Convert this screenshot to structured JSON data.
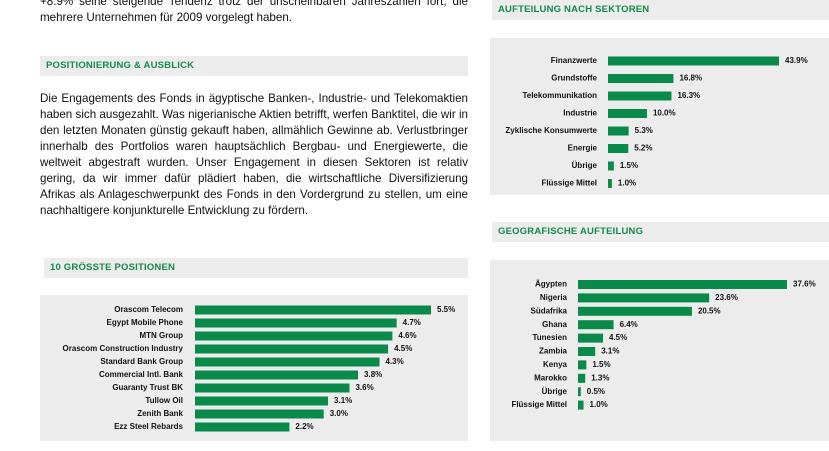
{
  "document": {
    "intro": "+8.9% seine steigende Tendenz trotz der unscheinbaren Jahreszahlen fort, die mehrere Unternehmen für 2009 vorgelegt haben.",
    "section_heading": "POSITIONIERUNG & AUSBLICK",
    "section_text": "Die Engagements des Fonds in ägyptische Banken-, Industrie- und Telekomaktien haben sich ausgezahlt. Was nigerianische Aktien betrifft, werfen Banktitel, die wir in den letzten Monaten günstig gekauft haben, allmählich Gewinne ab. Verlustbringer innerhalb des Portfolios waren hauptsächlich Bergbau- und Energiewerte, die weltweit abgestraft wurden. Unser Engagement in diesen Sektoren ist relativ gering, da wir immer dafür plädiert haben, die wirtschaftliche Diversifizierung Afrikas als Anlageschwerpunkt des Fonds in den Vordergrund zu stellen, um eine nachhaltigere konjunkturelle Entwicklung zu fördern."
  },
  "chart_data": [
    {
      "type": "bar",
      "orientation": "horizontal",
      "title": "10 GRÖSSTE POSITIONEN",
      "color": "#0a8a4a",
      "categories": [
        "Orascom Telecom",
        "Egypt Mobile Phone",
        "MTN Group",
        "Orascom Construction Industry",
        "Standard Bank Group",
        "Commercial Intl. Bank",
        "Guaranty Trust BK",
        "Tullow Oil",
        "Zenith Bank",
        "Ezz Steel Rebards"
      ],
      "values": [
        5.5,
        4.7,
        4.6,
        4.5,
        4.3,
        3.8,
        3.6,
        3.1,
        3.0,
        2.2
      ],
      "value_labels": [
        "5.5%",
        "4.7%",
        "4.6%",
        "4.5%",
        "4.3%",
        "3.8%",
        "3.6%",
        "3.1%",
        "3.0%",
        "2.2%"
      ]
    },
    {
      "type": "bar",
      "orientation": "horizontal",
      "title": "AUFTEILUNG NACH SEKTOREN",
      "color": "#0a8a4a",
      "categories": [
        "Finanzwerte",
        "Grundstoffe",
        "Telekommunikation",
        "Industrie",
        "Zyklische Konsumwerte",
        "Energie",
        "Übrige",
        "Flüssige Mittel"
      ],
      "values": [
        43.9,
        16.8,
        16.3,
        10.0,
        5.3,
        5.2,
        1.5,
        1.0
      ],
      "value_labels": [
        "43.9%",
        "16.8%",
        "16.3%",
        "10.0%",
        "5.3%",
        "5.2%",
        "1.5%",
        "1.0%"
      ]
    },
    {
      "type": "bar",
      "orientation": "horizontal",
      "title": "GEOGRAFISCHE AUFTEILUNG",
      "color": "#0a8a4a",
      "categories": [
        "Ägypten",
        "Nigeria",
        "Südafrika",
        "Ghana",
        "Tunesien",
        "Zambia",
        "Kenya",
        "Marokko",
        "Übrige",
        "Flüssige Mittel"
      ],
      "values": [
        37.6,
        23.6,
        20.5,
        6.4,
        4.5,
        3.1,
        1.5,
        1.3,
        0.5,
        1.0
      ],
      "value_labels": [
        "37.6%",
        "23.6%",
        "20.5%",
        "6.4%",
        "4.5%",
        "3.1%",
        "1.5%",
        "1.3%",
        "0.5%",
        "1.0%"
      ]
    }
  ]
}
